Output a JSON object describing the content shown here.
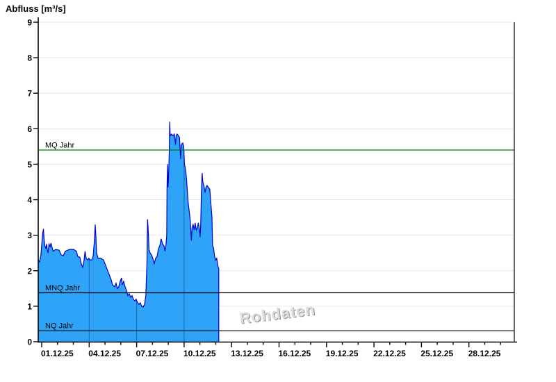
{
  "title": "Abfluss [m³/s]",
  "watermark": "Rohdaten",
  "chart_data": {
    "type": "area",
    "title": "Abfluss [m³/s]",
    "ylabel": "Abfluss [m³/s]",
    "xlabel": "",
    "ylim": [
      0,
      9
    ],
    "y_ticks": [
      0,
      1,
      2,
      3,
      4,
      5,
      6,
      7,
      8,
      9
    ],
    "x_axis": {
      "tick_labels": [
        "01.12.25",
        "04.12.25",
        "07.12.25",
        "10.12.25",
        "13.12.25",
        "16.12.25",
        "19.12.25",
        "22.12.25",
        "25.12.25",
        "28.12.25"
      ],
      "label_every_days": 3,
      "minor_tick_every_days": 1,
      "total_days_shown": 30,
      "day_gridlines_in_area": [
        3,
        6,
        9
      ]
    },
    "grid": "horizontal-light",
    "legend_position": "none",
    "reference_lines": [
      {
        "label": "MQ Jahr",
        "value": 5.4,
        "color": "#007a00"
      },
      {
        "label": "MNQ Jahr",
        "value": 1.38,
        "color": "#000000"
      },
      {
        "label": "NQ Jahr",
        "value": 0.31,
        "color": "#000000"
      }
    ],
    "colors": {
      "fill": "#2ea3f7",
      "stroke": "#0000cc",
      "grid": "#e8e8e8",
      "axis": "#000000",
      "area_gridline_overlay": "rgba(0,0,70,0.40)"
    },
    "series": [
      {
        "name": "Abfluss Rohdaten",
        "unit": "m³/s",
        "points_day_value": [
          [
            -0.22,
            2.3
          ],
          [
            -0.13,
            2.25
          ],
          [
            -0.05,
            2.45
          ],
          [
            0.05,
            3.0
          ],
          [
            0.11,
            3.18
          ],
          [
            0.15,
            2.9
          ],
          [
            0.2,
            2.7
          ],
          [
            0.26,
            2.62
          ],
          [
            0.31,
            2.75
          ],
          [
            0.35,
            2.6
          ],
          [
            0.4,
            2.5
          ],
          [
            0.46,
            2.75
          ],
          [
            0.53,
            2.68
          ],
          [
            0.59,
            2.78
          ],
          [
            0.66,
            2.65
          ],
          [
            0.72,
            2.55
          ],
          [
            0.88,
            2.6
          ],
          [
            1.1,
            2.58
          ],
          [
            1.23,
            2.45
          ],
          [
            1.36,
            2.42
          ],
          [
            1.49,
            2.55
          ],
          [
            1.76,
            2.6
          ],
          [
            2.02,
            2.6
          ],
          [
            2.19,
            2.55
          ],
          [
            2.28,
            2.4
          ],
          [
            2.41,
            2.38
          ],
          [
            2.5,
            2.2
          ],
          [
            2.59,
            2.1
          ],
          [
            2.68,
            2.3
          ],
          [
            2.74,
            2.55
          ],
          [
            2.81,
            2.35
          ],
          [
            2.9,
            2.3
          ],
          [
            2.98,
            2.35
          ],
          [
            3.07,
            2.3
          ],
          [
            3.16,
            2.3
          ],
          [
            3.25,
            2.4
          ],
          [
            3.34,
            2.9
          ],
          [
            3.38,
            3.3
          ],
          [
            3.42,
            3.0
          ],
          [
            3.47,
            2.5
          ],
          [
            3.56,
            2.35
          ],
          [
            3.73,
            2.35
          ],
          [
            3.91,
            2.3
          ],
          [
            4.04,
            2.15
          ],
          [
            4.17,
            2.0
          ],
          [
            4.3,
            1.85
          ],
          [
            4.39,
            1.75
          ],
          [
            4.48,
            1.6
          ],
          [
            4.61,
            1.55
          ],
          [
            4.7,
            1.65
          ],
          [
            4.78,
            1.5
          ],
          [
            4.87,
            1.55
          ],
          [
            4.96,
            1.7
          ],
          [
            5.05,
            1.8
          ],
          [
            5.09,
            1.6
          ],
          [
            5.18,
            1.7
          ],
          [
            5.27,
            1.55
          ],
          [
            5.36,
            1.45
          ],
          [
            5.44,
            1.3
          ],
          [
            5.53,
            1.35
          ],
          [
            5.62,
            1.25
          ],
          [
            5.71,
            1.3
          ],
          [
            5.79,
            1.2
          ],
          [
            5.88,
            1.15
          ],
          [
            5.97,
            1.2
          ],
          [
            6.06,
            1.1
          ],
          [
            6.15,
            1.05
          ],
          [
            6.23,
            1.1
          ],
          [
            6.32,
            1.0
          ],
          [
            6.41,
            0.98
          ],
          [
            6.5,
            1.05
          ],
          [
            6.58,
            1.3
          ],
          [
            6.65,
            2.2
          ],
          [
            6.69,
            3.45
          ],
          [
            6.74,
            3.1
          ],
          [
            6.78,
            2.6
          ],
          [
            6.85,
            2.5
          ],
          [
            6.94,
            2.45
          ],
          [
            7.02,
            2.35
          ],
          [
            7.11,
            2.2
          ],
          [
            7.2,
            2.35
          ],
          [
            7.29,
            2.4
          ],
          [
            7.37,
            2.6
          ],
          [
            7.46,
            2.7
          ],
          [
            7.55,
            2.9
          ],
          [
            7.64,
            2.75
          ],
          [
            7.73,
            2.7
          ],
          [
            7.79,
            2.55
          ],
          [
            7.86,
            2.75
          ],
          [
            7.9,
            3.0
          ],
          [
            7.92,
            4.3
          ],
          [
            7.95,
            5.0
          ],
          [
            7.98,
            4.35
          ],
          [
            8.01,
            4.6
          ],
          [
            8.06,
            5.3
          ],
          [
            8.09,
            6.2
          ],
          [
            8.12,
            5.8
          ],
          [
            8.21,
            5.85
          ],
          [
            8.3,
            5.8
          ],
          [
            8.38,
            5.85
          ],
          [
            8.46,
            5.55
          ],
          [
            8.49,
            5.8
          ],
          [
            8.56,
            5.85
          ],
          [
            8.65,
            5.8
          ],
          [
            8.71,
            5.75
          ],
          [
            8.78,
            5.15
          ],
          [
            8.82,
            5.55
          ],
          [
            8.91,
            5.6
          ],
          [
            8.98,
            5.5
          ],
          [
            9.02,
            5.0
          ],
          [
            9.09,
            4.85
          ],
          [
            9.15,
            4.6
          ],
          [
            9.22,
            4.15
          ],
          [
            9.26,
            3.9
          ],
          [
            9.33,
            3.65
          ],
          [
            9.39,
            3.4
          ],
          [
            9.46,
            2.85
          ],
          [
            9.5,
            3.2
          ],
          [
            9.57,
            3.3
          ],
          [
            9.64,
            3.15
          ],
          [
            9.7,
            3.35
          ],
          [
            9.77,
            3.15
          ],
          [
            9.83,
            3.2
          ],
          [
            9.9,
            3.35
          ],
          [
            9.97,
            3.15
          ],
          [
            10.01,
            2.95
          ],
          [
            10.05,
            3.3
          ],
          [
            10.1,
            4.3
          ],
          [
            10.14,
            4.75
          ],
          [
            10.18,
            4.5
          ],
          [
            10.25,
            4.4
          ],
          [
            10.32,
            4.2
          ],
          [
            10.38,
            4.35
          ],
          [
            10.45,
            4.4
          ],
          [
            10.53,
            4.35
          ],
          [
            10.62,
            4.3
          ],
          [
            10.69,
            3.9
          ],
          [
            10.76,
            3.5
          ],
          [
            10.8,
            2.7
          ],
          [
            10.86,
            2.65
          ],
          [
            10.93,
            2.4
          ],
          [
            11.0,
            2.3
          ],
          [
            11.06,
            2.35
          ],
          [
            11.13,
            2.15
          ],
          [
            11.19,
            2.05
          ]
        ]
      }
    ]
  }
}
